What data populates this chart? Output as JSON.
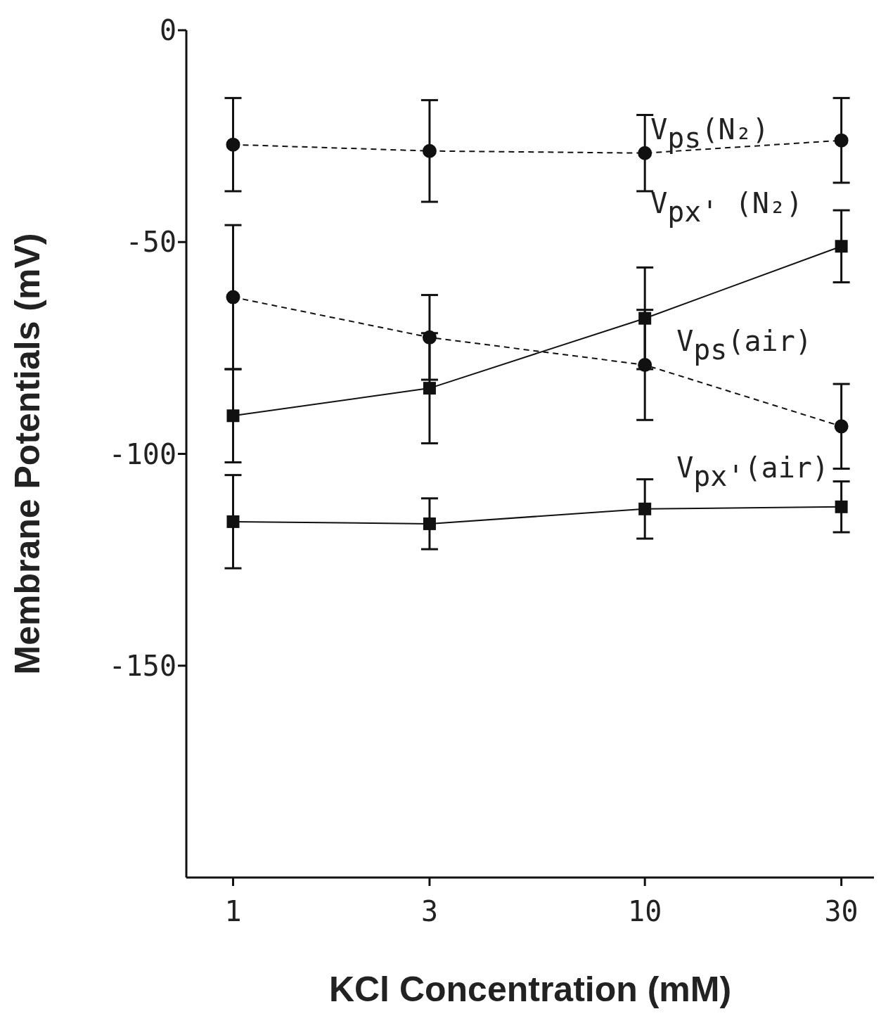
{
  "chart_data": {
    "type": "line",
    "xlabel": "KCl Concentration (mM)",
    "ylabel": "Membrane Potentials (mV)",
    "x": [
      1,
      3,
      10,
      30
    ],
    "log": "x",
    "xlim": [
      0.77,
      36
    ],
    "xticks": [
      1,
      3,
      10,
      30
    ],
    "ylim": [
      -200,
      0
    ],
    "yticks": [
      0,
      -50,
      -100,
      -150
    ],
    "series": [
      {
        "name": "V$_{ps}$(N₂)",
        "color": "#111111",
        "marker": "circle",
        "line_style": "dashed",
        "values": [
          -27,
          -28.5,
          -29,
          -26
        ],
        "errors": [
          11,
          12,
          9,
          10
        ]
      },
      {
        "name": "V$_{px'}$ (N₂)",
        "color": "#111111",
        "marker": "square",
        "line_style": "solid",
        "values": [
          -91,
          -84.5,
          -68,
          -51
        ],
        "errors": [
          11,
          13,
          12,
          8.5
        ]
      },
      {
        "name": "V$_{ps}$(air)",
        "color": "#111111",
        "marker": "circle",
        "line_style": "dashed",
        "values": [
          -63,
          -72.5,
          -79,
          -93.5
        ],
        "errors": [
          17,
          10,
          13,
          10
        ]
      },
      {
        "name": "V$_{px'}$(air)",
        "color": "#111111",
        "marker": "square",
        "line_style": "solid",
        "values": [
          -116,
          -116.5,
          -113,
          -112.5
        ],
        "errors": [
          11,
          6,
          7,
          6
        ]
      }
    ]
  }
}
